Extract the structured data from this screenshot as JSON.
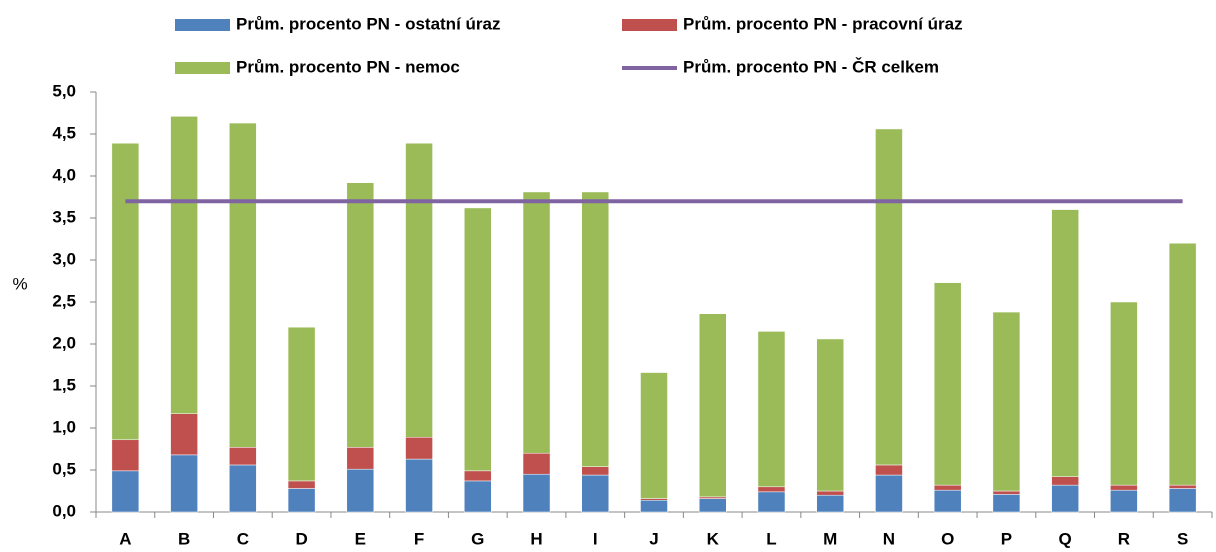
{
  "chart_data": {
    "type": "bar",
    "stacked": true,
    "y_label": "%",
    "categories": [
      "A",
      "B",
      "C",
      "D",
      "E",
      "F",
      "G",
      "H",
      "I",
      "J",
      "K",
      "L",
      "M",
      "N",
      "O",
      "P",
      "Q",
      "R",
      "S"
    ],
    "series": [
      {
        "name": "Prům. procento PN - ostatní úraz",
        "color": "#4f81bd",
        "type": "bar",
        "values": [
          0.49,
          0.68,
          0.56,
          0.28,
          0.51,
          0.63,
          0.37,
          0.45,
          0.44,
          0.14,
          0.16,
          0.24,
          0.2,
          0.44,
          0.26,
          0.21,
          0.32,
          0.26,
          0.28
        ]
      },
      {
        "name": "Prům. procento PN - pracovní úraz",
        "color": "#c0504d",
        "type": "bar",
        "values": [
          0.37,
          0.49,
          0.21,
          0.09,
          0.26,
          0.26,
          0.12,
          0.25,
          0.1,
          0.02,
          0.02,
          0.06,
          0.05,
          0.12,
          0.06,
          0.04,
          0.1,
          0.06,
          0.04
        ]
      },
      {
        "name": "Prům. procento PN - nemoc",
        "color": "#9bbb59",
        "type": "bar",
        "values": [
          3.53,
          3.54,
          3.86,
          1.83,
          3.15,
          3.5,
          3.13,
          3.11,
          3.27,
          1.5,
          2.18,
          1.85,
          1.81,
          4.0,
          2.41,
          2.13,
          3.18,
          2.18,
          2.88
        ]
      },
      {
        "name": "Prům. procento PN - ČR celkem",
        "color": "#8064a2",
        "type": "line",
        "values": [
          3.7,
          3.7,
          3.7,
          3.7,
          3.7,
          3.7,
          3.7,
          3.7,
          3.7,
          3.7,
          3.7,
          3.7,
          3.7,
          3.7,
          3.7,
          3.7,
          3.7,
          3.7,
          3.7
        ]
      }
    ],
    "ylim": [
      0,
      5
    ],
    "yticks": [
      {
        "value": 0,
        "label": "0,0"
      },
      {
        "value": 0.5,
        "label": "0,5"
      },
      {
        "value": 1,
        "label": "1,0"
      },
      {
        "value": 1.5,
        "label": "1,5"
      },
      {
        "value": 2,
        "label": "2,0"
      },
      {
        "value": 2.5,
        "label": "2,5"
      },
      {
        "value": 3,
        "label": "3,0"
      },
      {
        "value": 3.5,
        "label": "3,5"
      },
      {
        "value": 4,
        "label": "4,0"
      },
      {
        "value": 4.5,
        "label": "4,5"
      },
      {
        "value": 5,
        "label": "5,0"
      }
    ],
    "grid": false
  }
}
